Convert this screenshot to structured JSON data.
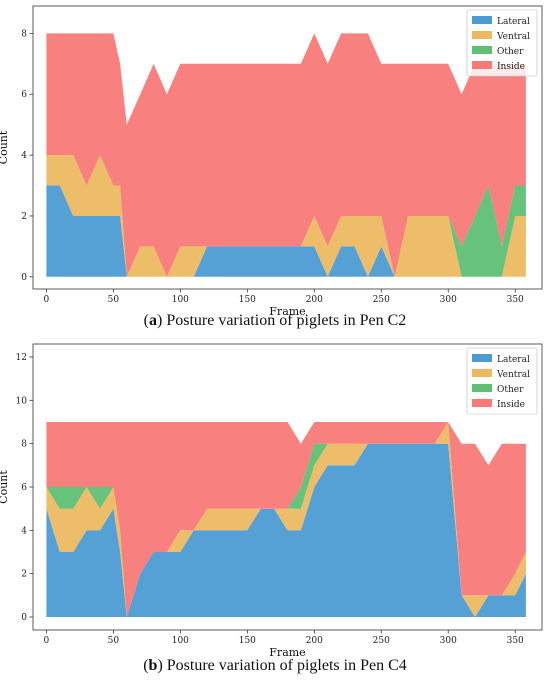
{
  "figure": {
    "panels": [
      {
        "letter": "a",
        "caption": "Posture variation of piglets in Pen C2"
      },
      {
        "letter": "b",
        "caption": "Posture variation of piglets in Pen C4"
      }
    ]
  },
  "colors": {
    "Lateral": "#4c9bd3",
    "Ventral": "#ecb962",
    "Other": "#5fbf74",
    "Inside": "#f87a78"
  },
  "chart_data": [
    {
      "type": "area",
      "stacked": true,
      "xlabel": "Frame",
      "ylabel": "Count",
      "xlim": [
        -10,
        370
      ],
      "ylim": [
        -0.4,
        8.9
      ],
      "xticks": [
        0,
        50,
        100,
        150,
        200,
        250,
        300,
        350
      ],
      "yticks": [
        0,
        2,
        4,
        6,
        8
      ],
      "legend": {
        "position": "top-right",
        "entries": [
          "Lateral",
          "Ventral",
          "Other",
          "Inside"
        ]
      },
      "x": [
        0,
        10,
        20,
        30,
        40,
        50,
        55,
        60,
        70,
        80,
        90,
        100,
        110,
        120,
        130,
        140,
        150,
        160,
        170,
        180,
        190,
        200,
        210,
        220,
        230,
        240,
        250,
        260,
        270,
        280,
        290,
        300,
        310,
        320,
        330,
        340,
        350,
        358
      ],
      "series": [
        {
          "name": "Lateral",
          "values": [
            3,
            3,
            2,
            2,
            2,
            2,
            2,
            0,
            0,
            0,
            0,
            0,
            0,
            1,
            1,
            1,
            1,
            1,
            1,
            1,
            1,
            1,
            0,
            1,
            1,
            0,
            1,
            0,
            0,
            0,
            0,
            0,
            0,
            0,
            0,
            0,
            0,
            0
          ]
        },
        {
          "name": "Ventral",
          "values": [
            1,
            1,
            2,
            1,
            2,
            1,
            1,
            0,
            1,
            1,
            0,
            1,
            1,
            0,
            0,
            0,
            0,
            0,
            0,
            0,
            0,
            1,
            1,
            1,
            1,
            2,
            1,
            0,
            2,
            2,
            2,
            2,
            0,
            0,
            0,
            0,
            2,
            2
          ]
        },
        {
          "name": "Other",
          "values": [
            0,
            0,
            0,
            0,
            0,
            0,
            0,
            0,
            0,
            0,
            0,
            0,
            0,
            0,
            0,
            0,
            0,
            0,
            0,
            0,
            0,
            0,
            0,
            0,
            0,
            0,
            0,
            0,
            0,
            0,
            0,
            0,
            1,
            2,
            3,
            1,
            1,
            1
          ]
        },
        {
          "name": "Inside",
          "values": [
            4,
            4,
            4,
            5,
            4,
            5,
            4,
            5,
            5,
            6,
            6,
            6,
            6,
            6,
            6,
            6,
            6,
            6,
            6,
            6,
            6,
            6,
            6,
            6,
            6,
            6,
            5,
            7,
            5,
            5,
            5,
            5,
            5,
            5,
            4,
            6,
            4,
            4
          ]
        }
      ]
    },
    {
      "type": "area",
      "stacked": true,
      "xlabel": "Frame",
      "ylabel": "Count",
      "xlim": [
        -10,
        370
      ],
      "ylim": [
        -0.6,
        12.6
      ],
      "xticks": [
        0,
        50,
        100,
        150,
        200,
        250,
        300,
        350
      ],
      "yticks": [
        0,
        2,
        4,
        6,
        8,
        10,
        12
      ],
      "legend": {
        "position": "top-right",
        "entries": [
          "Lateral",
          "Ventral",
          "Other",
          "Inside"
        ]
      },
      "x": [
        0,
        10,
        20,
        30,
        40,
        50,
        55,
        60,
        70,
        80,
        90,
        100,
        110,
        120,
        130,
        140,
        150,
        160,
        170,
        180,
        190,
        200,
        210,
        220,
        230,
        240,
        250,
        260,
        270,
        280,
        290,
        300,
        310,
        320,
        330,
        340,
        350,
        358
      ],
      "series": [
        {
          "name": "Lateral",
          "values": [
            5,
            3,
            3,
            4,
            4,
            5,
            3,
            0,
            2,
            3,
            3,
            3,
            4,
            4,
            4,
            4,
            4,
            5,
            5,
            4,
            4,
            6,
            7,
            7,
            7,
            8,
            8,
            8,
            8,
            8,
            8,
            8,
            1,
            0,
            1,
            1,
            1,
            2
          ]
        },
        {
          "name": "Ventral",
          "values": [
            1,
            2,
            2,
            2,
            1,
            1,
            1,
            0,
            0,
            0,
            0,
            1,
            0,
            1,
            1,
            1,
            1,
            0,
            0,
            1,
            1,
            1,
            1,
            1,
            1,
            0,
            0,
            0,
            0,
            0,
            0,
            1,
            0,
            1,
            0,
            0,
            1,
            1
          ]
        },
        {
          "name": "Other",
          "values": [
            0,
            1,
            1,
            0,
            1,
            0,
            0,
            0,
            0,
            0,
            0,
            0,
            0,
            0,
            0,
            0,
            0,
            0,
            0,
            0,
            1,
            1,
            0,
            0,
            0,
            0,
            0,
            0,
            0,
            0,
            0,
            0,
            0,
            0,
            0,
            0,
            0,
            0
          ]
        },
        {
          "name": "Inside",
          "values": [
            3,
            3,
            3,
            3,
            3,
            3,
            5,
            9,
            7,
            6,
            6,
            5,
            5,
            4,
            4,
            4,
            4,
            4,
            4,
            4,
            2,
            1,
            1,
            1,
            1,
            1,
            1,
            1,
            1,
            1,
            1,
            0,
            7,
            7,
            6,
            7,
            6,
            5
          ]
        }
      ]
    }
  ]
}
